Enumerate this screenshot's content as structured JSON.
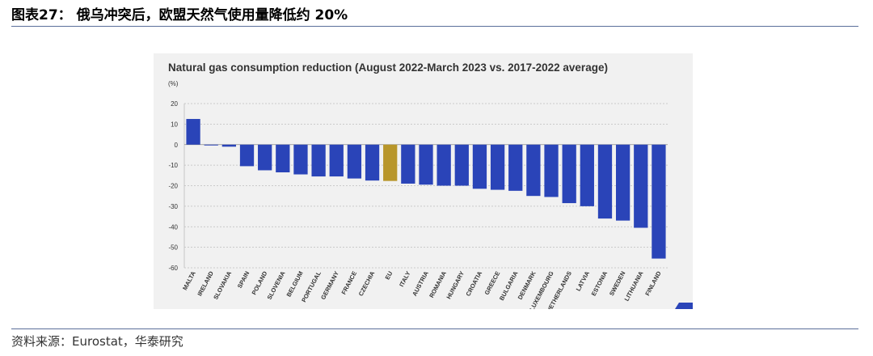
{
  "figure": {
    "title": "图表27： 俄乌冲突后，欧盟天然气使用量降低约 20%",
    "source": "资料来源：Eurostat，华泰研究"
  },
  "colors": {
    "bar": "#2a44b8",
    "highlight": "#b8962a",
    "panel_bg": "#f1f1f1",
    "grid": "#bdbdbd",
    "text": "#333333"
  },
  "chart_data": {
    "type": "bar",
    "title": "Natural gas consumption reduction (August 2022-March 2023 vs. 2017-2022 average)",
    "ylabel": "(%)",
    "xlabel": "",
    "ylim": [
      -60,
      20
    ],
    "yticks": [
      20,
      10,
      0,
      -10,
      -20,
      -30,
      -40,
      -50,
      -60
    ],
    "grid": true,
    "highlight_category": "EU",
    "categories": [
      "MALTA",
      "IRELAND",
      "SLOVAKIA",
      "SPAIN",
      "POLAND",
      "SLOVENIA",
      "BELGIUM",
      "PORTUGAL",
      "GERMANY",
      "FRANCE",
      "CZECHIA",
      "EU",
      "ITALY",
      "AUSTRIA",
      "ROMANIA",
      "HUNGARY",
      "CROATIA",
      "GREECE",
      "BULGARIA",
      "DENMARK",
      "LUXEMBOURG",
      "NETHERLANDS",
      "LATVIA",
      "ESTONIA",
      "SWEDEN",
      "LITHUANIA",
      "FINLAND"
    ],
    "values": [
      12.5,
      -0.2,
      -1.0,
      -10.5,
      -12.5,
      -13.5,
      -14.5,
      -15.5,
      -15.5,
      -16.5,
      -17.5,
      -17.7,
      -19.0,
      -19.5,
      -20.0,
      -20.0,
      -21.5,
      -22.0,
      -22.5,
      -25.0,
      -25.5,
      -28.5,
      -30.0,
      -36.0,
      -37.0,
      -40.5,
      -55.5
    ]
  }
}
